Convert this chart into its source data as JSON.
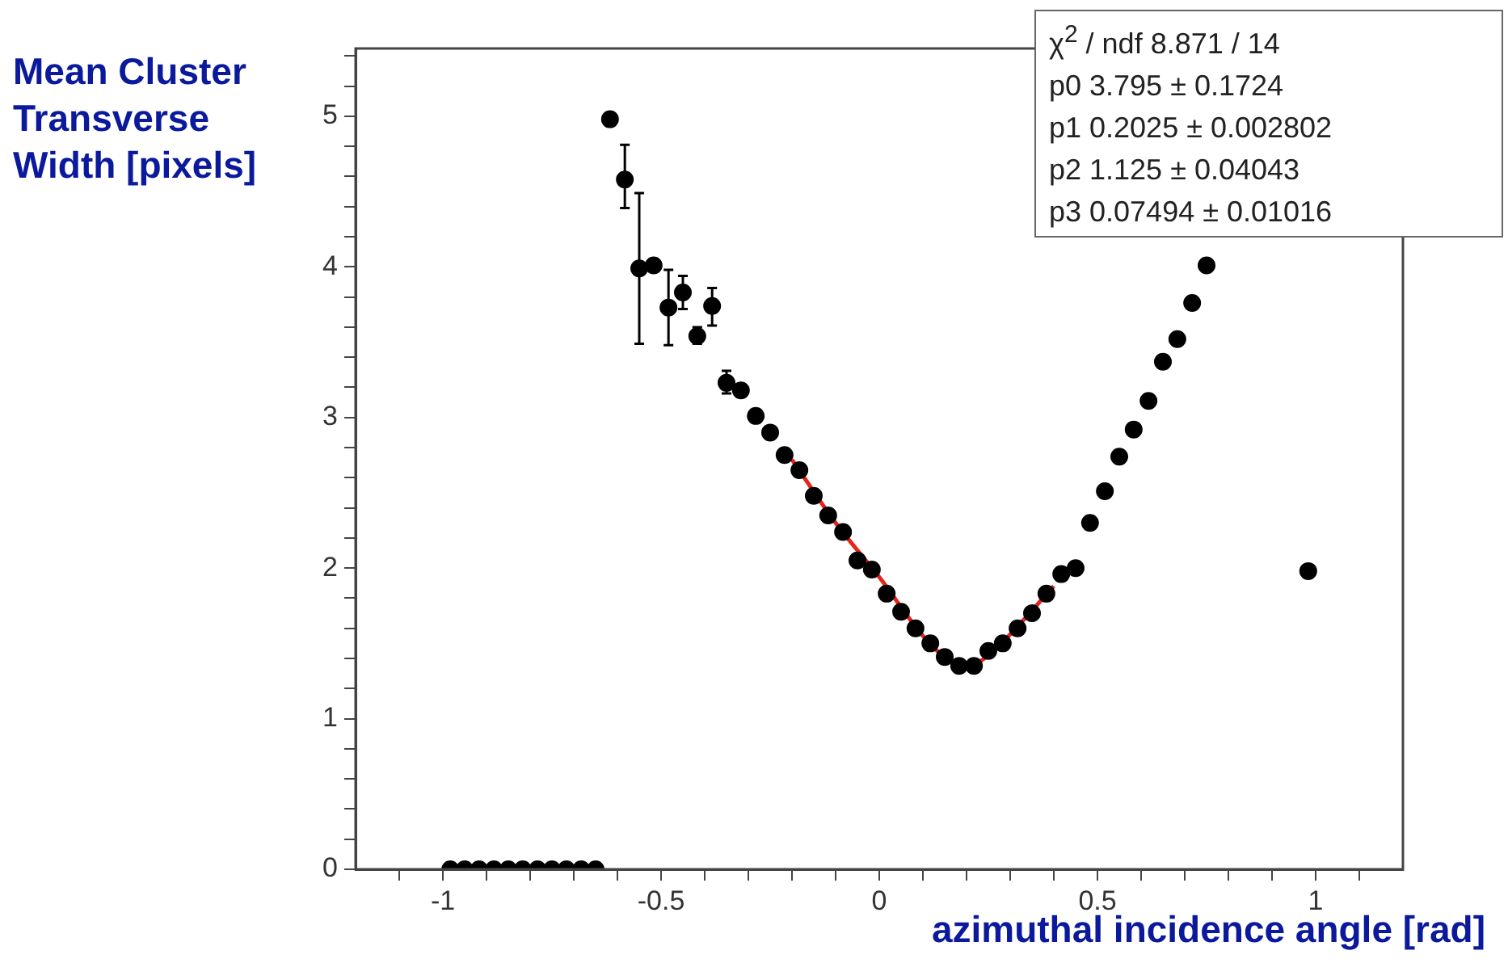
{
  "chart_data": {
    "type": "scatter",
    "xlabel": "azimuthal incidence angle [rad]",
    "ylabel": "Mean Cluster Transverse Width [pixels]",
    "xlim": [
      -1.2,
      1.2
    ],
    "ylim": [
      0,
      5.45
    ],
    "xticks": [
      {
        "value": -1.1,
        "label": null
      },
      -1,
      {
        "value": -0.9,
        "label": null
      },
      {
        "value": -0.8,
        "label": null
      },
      {
        "value": -0.7,
        "label": null
      },
      {
        "value": -0.6,
        "label": null
      },
      -0.5,
      {
        "value": -0.4,
        "label": null
      },
      {
        "value": -0.3,
        "label": null
      },
      {
        "value": -0.2,
        "label": null
      },
      {
        "value": -0.1,
        "label": null
      },
      0,
      {
        "value": 0.1,
        "label": null
      },
      {
        "value": 0.2,
        "label": null
      },
      {
        "value": 0.3,
        "label": null
      },
      {
        "value": 0.4,
        "label": null
      },
      0.5,
      {
        "value": 0.6,
        "label": null
      },
      {
        "value": 0.7,
        "label": null
      },
      {
        "value": 0.8,
        "label": null
      },
      {
        "value": 0.9,
        "label": null
      },
      1,
      {
        "value": 1.1,
        "label": null
      }
    ],
    "yticks": [
      0,
      {
        "value": 0.2,
        "label": null
      },
      {
        "value": 0.4,
        "label": null
      },
      {
        "value": 0.6,
        "label": null
      },
      {
        "value": 0.8,
        "label": null
      },
      1,
      {
        "value": 1.2,
        "label": null
      },
      {
        "value": 1.4,
        "label": null
      },
      {
        "value": 1.6,
        "label": null
      },
      {
        "value": 1.8,
        "label": null
      },
      2,
      {
        "value": 2.2,
        "label": null
      },
      {
        "value": 2.4,
        "label": null
      },
      {
        "value": 2.6,
        "label": null
      },
      {
        "value": 2.8,
        "label": null
      },
      3,
      {
        "value": 3.2,
        "label": null
      },
      {
        "value": 3.4,
        "label": null
      },
      {
        "value": 3.6,
        "label": null
      },
      {
        "value": 3.8,
        "label": null
      },
      4,
      {
        "value": 4.2,
        "label": null
      },
      {
        "value": 4.4,
        "label": null
      },
      {
        "value": 4.6,
        "label": null
      },
      {
        "value": 4.8,
        "label": null
      },
      5,
      {
        "value": 5.2,
        "label": null
      },
      {
        "value": 5.4,
        "label": null
      }
    ],
    "grid": false,
    "legend": false,
    "marker": "circle",
    "annotations": [
      "χ$^{2}$ / ndf 8.871 / 14",
      "p0 3.795 ± 0.1724",
      "p1 0.2025 ± 0.002802",
      "p2 1.125 ± 0.04043",
      "p3 0.07494 ± 0.01016"
    ],
    "series": [
      {
        "type": "scatter",
        "color": "#000000",
        "x": [
          -0.983,
          -0.95,
          -0.917,
          -0.883,
          -0.85,
          -0.817,
          -0.783,
          -0.75,
          -0.717,
          -0.683,
          -0.65,
          -0.617,
          -0.583,
          -0.55,
          -0.517,
          -0.483,
          -0.45,
          -0.417,
          -0.383,
          -0.35,
          -0.317,
          -0.283,
          -0.25,
          -0.217,
          -0.183,
          -0.15,
          -0.117,
          -0.083,
          -0.05,
          -0.017,
          0.017,
          0.05,
          0.083,
          0.117,
          0.15,
          0.183,
          0.217,
          0.25,
          0.283,
          0.317,
          0.35,
          0.383,
          0.417,
          0.45,
          0.483,
          0.517,
          0.55,
          0.583,
          0.617,
          0.65,
          0.683,
          0.717,
          0.75,
          0.983
        ],
        "values": [
          0,
          0,
          0,
          0,
          0,
          0,
          0,
          0,
          0,
          0,
          0,
          4.98,
          4.58,
          3.99,
          4.01,
          3.73,
          3.83,
          3.54,
          3.74,
          3.23,
          3.18,
          3.01,
          2.9,
          2.75,
          2.65,
          2.48,
          2.35,
          2.24,
          2.05,
          1.99,
          1.83,
          1.71,
          1.6,
          1.5,
          1.41,
          1.35,
          1.35,
          1.45,
          1.5,
          1.6,
          1.7,
          1.83,
          1.96,
          2.0,
          2.3,
          2.51,
          2.74,
          2.92,
          3.11,
          3.37,
          3.52,
          3.76,
          4.01,
          1.98
        ],
        "errors": [
          null,
          null,
          null,
          null,
          null,
          null,
          null,
          null,
          null,
          null,
          null,
          null,
          [
            4.39,
            4.81
          ],
          [
            3.49,
            4.49
          ],
          null,
          [
            3.48,
            3.98
          ],
          [
            3.72,
            3.94
          ],
          [
            3.49,
            3.6
          ],
          [
            3.61,
            3.86
          ],
          [
            3.16,
            3.31
          ],
          null,
          null,
          null,
          null,
          null,
          null,
          null,
          null,
          null,
          null,
          null,
          null,
          null,
          null,
          null,
          null,
          null,
          null,
          null,
          null,
          null,
          null,
          null,
          null,
          null,
          null,
          null,
          null,
          null,
          null,
          null,
          null,
          null,
          null
        ]
      },
      {
        "type": "line",
        "color": "#e8231e",
        "marker": "none",
        "x": [
          -0.2,
          -0.1,
          0,
          0.1,
          0.15,
          0.2025,
          0.25,
          0.3,
          0.4
        ],
        "values": [
          2.72,
          2.3,
          1.94,
          1.55,
          1.41,
          1.35,
          1.42,
          1.56,
          1.88
        ]
      }
    ]
  }
}
